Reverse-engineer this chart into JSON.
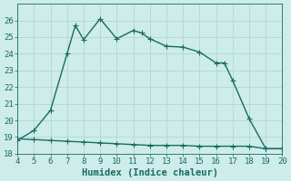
{
  "xlabel": "Humidex (Indice chaleur)",
  "background_color": "#cdecea",
  "grid_color": "#aed8d4",
  "line_color": "#1a6b5e",
  "xlim": [
    4,
    20
  ],
  "ylim": [
    18,
    27
  ],
  "xticks": [
    4,
    5,
    6,
    7,
    8,
    9,
    10,
    11,
    12,
    13,
    14,
    15,
    16,
    17,
    18,
    19,
    20
  ],
  "yticks": [
    18,
    19,
    20,
    21,
    22,
    23,
    24,
    25,
    26
  ],
  "line1_x": [
    4,
    5,
    6,
    7,
    7.5,
    8,
    9,
    10,
    11,
    11.5,
    12,
    13,
    14,
    15,
    16,
    16.5,
    17,
    18,
    19,
    20
  ],
  "line1_y": [
    18.8,
    19.4,
    20.6,
    24.0,
    25.7,
    24.85,
    26.1,
    24.9,
    25.4,
    25.25,
    24.9,
    24.45,
    24.4,
    24.1,
    23.45,
    23.45,
    22.4,
    20.1,
    18.3,
    18.3
  ],
  "line2_x": [
    4,
    5,
    6,
    7,
    8,
    9,
    10,
    11,
    12,
    13,
    14,
    15,
    16,
    17,
    18,
    19,
    20
  ],
  "line2_y": [
    18.9,
    18.85,
    18.8,
    18.75,
    18.7,
    18.65,
    18.6,
    18.55,
    18.5,
    18.5,
    18.5,
    18.45,
    18.45,
    18.45,
    18.45,
    18.3,
    18.3
  ],
  "marker_size": 2.5,
  "line_width": 1.0,
  "tick_font_size": 6.5,
  "xlabel_font_size": 7.5
}
